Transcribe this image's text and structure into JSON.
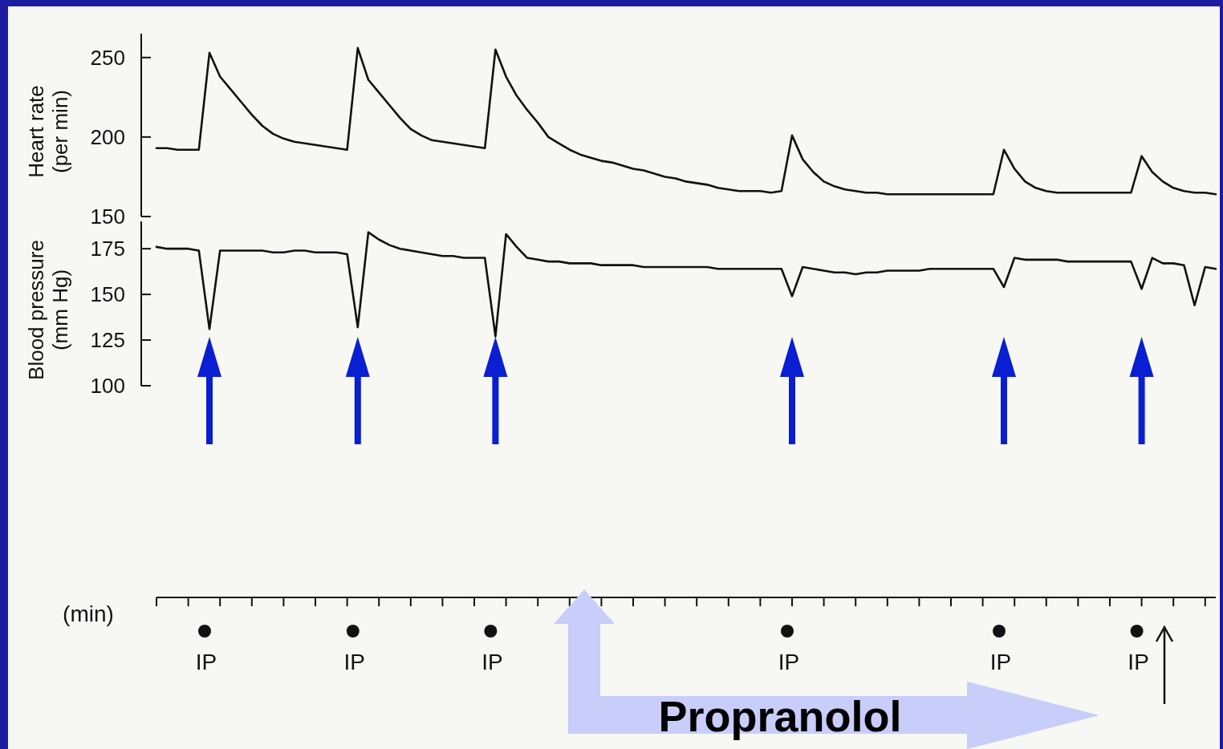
{
  "chart_data": [
    {
      "type": "line",
      "ylabel": "Heart rate (per min)",
      "categories": [
        null,
        null,
        null,
        null,
        null,
        null,
        null,
        null,
        null,
        null,
        null,
        null,
        null,
        null,
        null,
        null,
        null,
        null,
        null,
        null,
        null,
        null,
        null,
        null,
        null,
        null,
        null,
        null,
        null,
        null,
        null,
        null,
        null,
        null,
        null,
        null,
        null,
        null,
        null,
        null,
        null,
        null,
        null,
        null,
        null,
        null,
        null,
        null,
        null,
        null,
        null,
        null,
        null,
        null,
        null,
        null,
        null,
        null,
        null,
        null,
        null,
        null,
        null,
        null,
        null,
        null,
        null,
        null,
        null,
        null,
        null,
        null,
        null,
        null,
        null,
        null,
        null,
        null,
        null,
        null,
        null,
        null,
        null,
        null,
        null,
        null,
        null,
        null,
        null,
        null,
        null,
        null,
        null,
        null,
        null,
        null,
        null,
        null,
        null,
        null,
        null
      ],
      "series": [
        {
          "color": "#111111",
          "values": [
            193,
            193,
            192,
            192,
            192,
            253,
            238,
            230,
            222,
            214,
            207,
            202,
            199,
            197,
            196,
            195,
            194,
            193,
            192,
            256,
            236,
            228,
            220,
            212,
            205,
            201,
            198,
            197,
            196,
            195,
            194,
            193,
            255,
            238,
            226,
            217,
            209,
            200,
            196,
            192,
            189,
            187,
            185,
            184,
            182,
            180,
            179,
            177,
            175,
            174,
            172,
            171,
            170,
            168,
            167,
            166,
            166,
            166,
            165,
            166,
            201,
            186,
            178,
            172,
            169,
            167,
            166,
            165,
            165,
            164,
            164,
            164,
            164,
            164,
            164,
            164,
            164,
            164,
            164,
            164,
            192,
            180,
            172,
            168,
            166,
            165,
            165,
            165,
            165,
            165,
            165,
            165,
            165,
            188,
            178,
            172,
            168,
            166,
            165,
            165,
            164
          ]
        }
      ],
      "ylim": [
        150,
        265
      ],
      "yticks": [
        150,
        200,
        250
      ],
      "tick_labels": "y",
      "grid": false,
      "marker": "none",
      "line_style": "solid"
    },
    {
      "type": "line",
      "ylabel": "Blood pressure (mm Hg)",
      "xlabel": "(min)",
      "categories": [
        null,
        null,
        null,
        null,
        null,
        null,
        null,
        null,
        null,
        null,
        null,
        null,
        null,
        null,
        null,
        null,
        null,
        null,
        null,
        null,
        null,
        null,
        null,
        null,
        null,
        null,
        null,
        null,
        null,
        null,
        null,
        null,
        null,
        null,
        null,
        null,
        null,
        null,
        null,
        null,
        null,
        null,
        null,
        null,
        null,
        null,
        null,
        null,
        null,
        null,
        null,
        null,
        null,
        null,
        null,
        null,
        null,
        null,
        null,
        null,
        null,
        null,
        null,
        null,
        null,
        null,
        null,
        null,
        null,
        null,
        null,
        null,
        null,
        null,
        null,
        null,
        null,
        null,
        null,
        null,
        null,
        null,
        null,
        null,
        null,
        null,
        null,
        null,
        null,
        null,
        null,
        null,
        null,
        null,
        null,
        null,
        null,
        null,
        null,
        null,
        null
      ],
      "series": [
        {
          "color": "#111111",
          "values": [
            176,
            175,
            175,
            175,
            174,
            131,
            174,
            174,
            174,
            174,
            174,
            173,
            173,
            174,
            174,
            173,
            173,
            173,
            172,
            132,
            184,
            180,
            177,
            175,
            174,
            173,
            172,
            171,
            171,
            170,
            170,
            170,
            127,
            183,
            176,
            170,
            169,
            168,
            168,
            167,
            167,
            167,
            166,
            166,
            166,
            166,
            165,
            165,
            165,
            165,
            165,
            165,
            165,
            164,
            164,
            164,
            164,
            164,
            164,
            164,
            149,
            165,
            164,
            163,
            162,
            162,
            161,
            162,
            162,
            163,
            163,
            163,
            163,
            164,
            164,
            164,
            164,
            164,
            164,
            164,
            154,
            170,
            169,
            169,
            169,
            169,
            168,
            168,
            168,
            168,
            168,
            168,
            168,
            153,
            170,
            167,
            167,
            166,
            144,
            165,
            164
          ]
        }
      ],
      "ylim": [
        100,
        190
      ],
      "yticks": [
        100,
        125,
        150,
        175
      ],
      "tick_labels": "y",
      "grid": false,
      "marker": "none",
      "line_style": "solid",
      "annotations": [
        "IP",
        "IP",
        "IP",
        "IP",
        "IP",
        "IP",
        "Propranolol"
      ]
    }
  ]
}
